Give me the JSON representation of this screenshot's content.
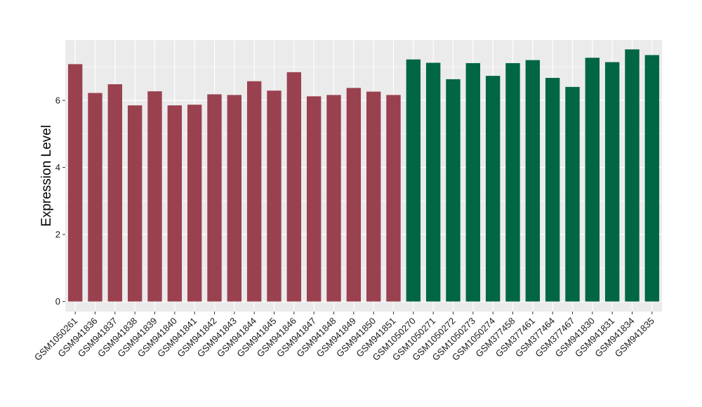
{
  "chart_data": {
    "type": "bar",
    "title": "",
    "xlabel": "",
    "ylabel": "Expression Level",
    "ylim": [
      -0.3,
      7.8
    ],
    "yticks": [
      0,
      2,
      4,
      6
    ],
    "grid": true,
    "legend": "none",
    "categories": [
      "GSM1050261",
      "GSM941836",
      "GSM941837",
      "GSM941838",
      "GSM941839",
      "GSM941840",
      "GSM941841",
      "GSM941842",
      "GSM941843",
      "GSM941844",
      "GSM941845",
      "GSM941846",
      "GSM941847",
      "GSM941848",
      "GSM941849",
      "GSM941850",
      "GSM941851",
      "GSM1050270",
      "GSM1050271",
      "GSM1050272",
      "GSM1050273",
      "GSM1050274",
      "GSM377458",
      "GSM377461",
      "GSM377464",
      "GSM377467",
      "GSM941830",
      "GSM941831",
      "GSM941834",
      "GSM941835"
    ],
    "values": [
      7.08,
      6.22,
      6.48,
      5.85,
      6.27,
      5.85,
      5.87,
      6.18,
      6.16,
      6.57,
      6.29,
      6.84,
      6.12,
      6.16,
      6.37,
      6.26,
      6.16,
      7.22,
      7.12,
      6.63,
      7.11,
      6.73,
      7.11,
      7.2,
      6.67,
      6.4,
      7.27,
      7.14,
      7.52,
      7.35
    ],
    "bar_colors": [
      "#9A4150",
      "#9A4150",
      "#9A4150",
      "#9A4150",
      "#9A4150",
      "#9A4150",
      "#9A4150",
      "#9A4150",
      "#9A4150",
      "#9A4150",
      "#9A4150",
      "#9A4150",
      "#9A4150",
      "#9A4150",
      "#9A4150",
      "#9A4150",
      "#9A4150",
      "#006644",
      "#006644",
      "#006644",
      "#006644",
      "#006644",
      "#006644",
      "#006644",
      "#006644",
      "#006644",
      "#006644",
      "#006644",
      "#006644",
      "#006644"
    ],
    "panel_color": "#EBEBEB",
    "grid_color": "#FFFFFF"
  }
}
